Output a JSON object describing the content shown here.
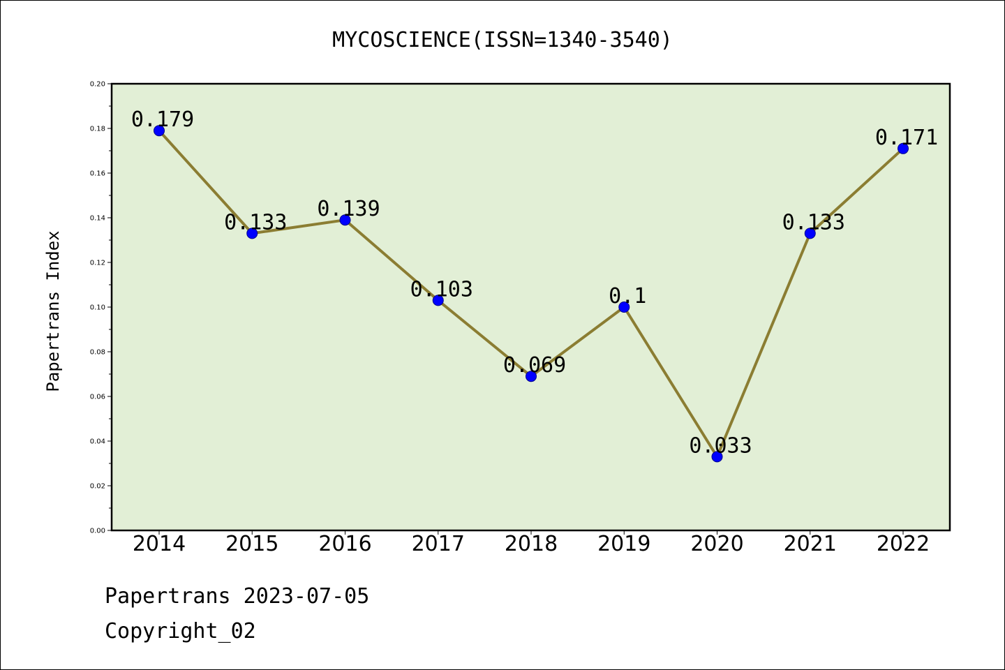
{
  "chart_data": {
    "type": "line",
    "title": "MYCOSCIENCE(ISSN=1340-3540)",
    "xlabel": "",
    "ylabel": "Papertrans Index",
    "categories": [
      "2014",
      "2015",
      "2016",
      "2017",
      "2018",
      "2019",
      "2020",
      "2021",
      "2022"
    ],
    "values": [
      0.179,
      0.133,
      0.139,
      0.103,
      0.069,
      0.1,
      0.033,
      0.133,
      0.171
    ],
    "data_labels": [
      "0.179",
      "0.133",
      "0.139",
      "0.103",
      "0.069",
      "0.1",
      "0.033",
      "0.133",
      "0.171"
    ],
    "ylim": [
      0,
      0.2
    ],
    "yticks": [
      "0.00",
      "0.02",
      "0.04",
      "0.06",
      "0.08",
      "0.10",
      "0.12",
      "0.14",
      "0.16",
      "0.18",
      "0.20"
    ],
    "grid": false,
    "colors": {
      "line": "#8b7d32",
      "marker": "#0000ff",
      "plot_background": "#e2efd6",
      "axes": "#000000"
    }
  },
  "footer": {
    "line1": "Papertrans 2023-07-05",
    "line2": "Copyright_02"
  }
}
